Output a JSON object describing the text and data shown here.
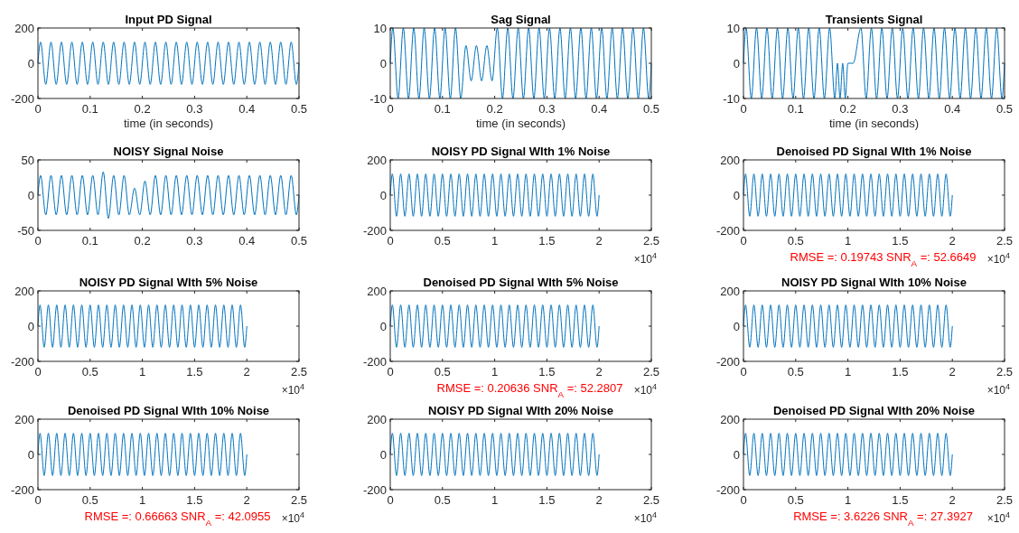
{
  "chart_data": [
    {
      "type": "line",
      "title": "Input PD Signal",
      "xlabel": "time (in seconds)",
      "xlim": [
        0,
        0.5
      ],
      "ylim": [
        -200,
        200
      ],
      "xticks": [
        0,
        0.1,
        0.2,
        0.3,
        0.4,
        0.5
      ],
      "yticks": [
        -200,
        0,
        200
      ],
      "x": [
        0,
        0.005,
        0.015,
        0.025,
        0.035,
        0.045,
        0.055,
        0.065,
        0.075,
        0.085,
        0.095,
        0.105,
        0.115,
        0.125,
        0.135,
        0.145,
        0.155,
        0.165,
        0.175,
        0.185,
        0.195,
        0.205,
        0.215,
        0.225,
        0.235,
        0.245,
        0.255,
        0.265,
        0.275,
        0.285,
        0.295,
        0.305,
        0.315,
        0.325,
        0.335,
        0.345,
        0.355,
        0.365,
        0.375,
        0.385,
        0.395,
        0.405,
        0.415,
        0.425,
        0.435,
        0.445,
        0.455,
        0.465,
        0.475,
        0.485,
        0.495,
        0.5
      ],
      "series": [
        {
          "color": "#0072bd",
          "values": [
            0,
            120,
            -120,
            120,
            -120,
            120,
            -120,
            120,
            -120,
            120,
            -120,
            120,
            -120,
            120,
            -120,
            120,
            -120,
            120,
            -120,
            120,
            -120,
            120,
            -120,
            120,
            -120,
            120,
            -120,
            120,
            -120,
            120,
            -120,
            120,
            -120,
            120,
            -120,
            120,
            -120,
            120,
            -120,
            120,
            -120,
            120,
            -120,
            120,
            -120,
            120,
            -120,
            120,
            -120,
            120,
            -120,
            0
          ]
        }
      ]
    },
    {
      "type": "line",
      "title": "Sag Signal",
      "xlabel": "time (in seconds)",
      "xlim": [
        0,
        0.5
      ],
      "ylim": [
        -10,
        10
      ],
      "xticks": [
        0,
        0.1,
        0.2,
        0.3,
        0.4,
        0.5
      ],
      "yticks": [
        -10,
        0,
        10
      ],
      "x": [
        0,
        0.005,
        0.015,
        0.025,
        0.035,
        0.045,
        0.055,
        0.065,
        0.075,
        0.085,
        0.095,
        0.105,
        0.115,
        0.125,
        0.135,
        0.145,
        0.155,
        0.165,
        0.175,
        0.185,
        0.195,
        0.205,
        0.215,
        0.225,
        0.235,
        0.245,
        0.255,
        0.265,
        0.275,
        0.285,
        0.295,
        0.305,
        0.315,
        0.325,
        0.335,
        0.345,
        0.355,
        0.365,
        0.375,
        0.385,
        0.395,
        0.405,
        0.415,
        0.425,
        0.435,
        0.445,
        0.455,
        0.465,
        0.475,
        0.485,
        0.495,
        0.5
      ],
      "series": [
        {
          "color": "#0072bd",
          "values": [
            0,
            10,
            -10,
            10,
            -10,
            10,
            -10,
            10,
            -10,
            10,
            -10,
            10,
            -10,
            10,
            -10,
            5,
            -5,
            5,
            -5,
            5,
            -5,
            10,
            -10,
            10,
            -10,
            10,
            -10,
            10,
            -10,
            10,
            -10,
            10,
            -10,
            10,
            -10,
            10,
            -10,
            10,
            -10,
            10,
            -10,
            10,
            -10,
            10,
            -10,
            10,
            -10,
            10,
            -10,
            10,
            -10,
            0
          ]
        }
      ]
    },
    {
      "type": "line",
      "title": "Transients Signal",
      "xlabel": "time (in seconds)",
      "xlim": [
        0,
        0.5
      ],
      "ylim": [
        -10,
        10
      ],
      "xticks": [
        0,
        0.1,
        0.2,
        0.3,
        0.4,
        0.5
      ],
      "yticks": [
        -10,
        0,
        10
      ],
      "x": [
        0,
        0.005,
        0.015,
        0.025,
        0.035,
        0.045,
        0.055,
        0.065,
        0.075,
        0.085,
        0.095,
        0.105,
        0.115,
        0.125,
        0.135,
        0.145,
        0.155,
        0.165,
        0.175,
        0.18,
        0.185,
        0.19,
        0.195,
        0.2,
        0.21,
        0.225,
        0.235,
        0.245,
        0.255,
        0.265,
        0.275,
        0.285,
        0.295,
        0.305,
        0.315,
        0.325,
        0.335,
        0.345,
        0.355,
        0.365,
        0.375,
        0.385,
        0.395,
        0.405,
        0.415,
        0.425,
        0.435,
        0.445,
        0.455,
        0.465,
        0.475,
        0.485,
        0.495,
        0.5
      ],
      "series": [
        {
          "color": "#0072bd",
          "values": [
            0,
            10,
            -10,
            10,
            -10,
            10,
            -10,
            10,
            -10,
            10,
            -10,
            10,
            -10,
            10,
            -10,
            10,
            -10,
            10,
            -10,
            0,
            -10,
            0,
            -10,
            0,
            0,
            10,
            -10,
            10,
            -10,
            10,
            -10,
            10,
            -10,
            10,
            -10,
            10,
            -10,
            10,
            -10,
            10,
            -10,
            10,
            -10,
            10,
            -10,
            10,
            -10,
            10,
            -10,
            10,
            -10,
            10,
            -10,
            0
          ]
        }
      ]
    },
    {
      "type": "line",
      "title": "NOISY  Signal  Noise",
      "xlim": [
        0,
        0.5
      ],
      "ylim": [
        -50,
        50
      ],
      "xticks": [
        0,
        0.1,
        0.2,
        0.3,
        0.4,
        0.5
      ],
      "yticks": [
        -50,
        0,
        50
      ],
      "x": [
        0,
        0.005,
        0.015,
        0.025,
        0.035,
        0.045,
        0.055,
        0.065,
        0.075,
        0.085,
        0.095,
        0.105,
        0.115,
        0.125,
        0.135,
        0.145,
        0.155,
        0.165,
        0.175,
        0.185,
        0.195,
        0.205,
        0.215,
        0.225,
        0.235,
        0.245,
        0.255,
        0.265,
        0.275,
        0.285,
        0.295,
        0.305,
        0.315,
        0.325,
        0.335,
        0.345,
        0.355,
        0.365,
        0.375,
        0.385,
        0.395,
        0.405,
        0.415,
        0.425,
        0.435,
        0.445,
        0.455,
        0.465,
        0.475,
        0.485,
        0.495,
        0.5
      ],
      "series": [
        {
          "color": "#0072bd",
          "values": [
            0,
            28,
            -28,
            28,
            -28,
            28,
            -28,
            28,
            -28,
            28,
            -28,
            28,
            -28,
            33,
            -33,
            28,
            -28,
            28,
            -28,
            10,
            -28,
            20,
            -28,
            28,
            -28,
            28,
            -28,
            28,
            -28,
            28,
            -28,
            28,
            -28,
            28,
            -28,
            28,
            -28,
            28,
            -28,
            28,
            -28,
            28,
            -28,
            28,
            -28,
            28,
            -28,
            28,
            -28,
            28,
            -28,
            0
          ]
        }
      ]
    },
    {
      "type": "line",
      "title": "NOISY PD Signal WIth 1% Noise",
      "xlim": [
        0,
        2.5
      ],
      "ylim": [
        -200,
        200
      ],
      "xticks": [
        0,
        0.5,
        1,
        1.5,
        2,
        2.5
      ],
      "yticks": [
        -200,
        0,
        200
      ],
      "annotations": [
        "×10$^{4}$"
      ],
      "x": [
        0,
        0.02,
        0.06,
        0.1,
        0.14,
        0.18,
        0.22,
        0.26,
        0.3,
        0.34,
        0.38,
        0.42,
        0.46,
        0.5,
        0.54,
        0.58,
        0.62,
        0.66,
        0.7,
        0.74,
        0.78,
        0.82,
        0.86,
        0.9,
        0.94,
        0.98,
        1.02,
        1.06,
        1.1,
        1.14,
        1.18,
        1.22,
        1.26,
        1.3,
        1.34,
        1.38,
        1.42,
        1.46,
        1.5,
        1.54,
        1.58,
        1.62,
        1.66,
        1.7,
        1.74,
        1.78,
        1.82,
        1.86,
        1.9,
        1.94,
        1.98,
        2
      ],
      "series": [
        {
          "color": "#0072bd",
          "values": [
            0,
            120,
            -120,
            120,
            -120,
            120,
            -120,
            120,
            -120,
            120,
            -120,
            120,
            -120,
            120,
            -120,
            120,
            -120,
            120,
            -120,
            120,
            -120,
            120,
            -120,
            120,
            -120,
            120,
            -120,
            120,
            -120,
            120,
            -120,
            120,
            -120,
            120,
            -120,
            120,
            -120,
            120,
            -120,
            120,
            -120,
            120,
            -120,
            120,
            -120,
            120,
            -120,
            120,
            -120,
            120,
            -120,
            0
          ]
        }
      ]
    },
    {
      "type": "line",
      "title": "Denoised PD Signal WIth 1% Noise",
      "xlim": [
        0,
        2.5
      ],
      "ylim": [
        -200,
        200
      ],
      "xticks": [
        0,
        0.5,
        1,
        1.5,
        2,
        2.5
      ],
      "yticks": [
        -200,
        0,
        200
      ],
      "annotations": [
        "×10$^{4}$",
        "RMSE =: 0.19743 SNR$_{A}$ =: 52.6649"
      ],
      "x": [
        0,
        0.02,
        0.06,
        0.1,
        0.14,
        0.18,
        0.22,
        0.26,
        0.3,
        0.34,
        0.38,
        0.42,
        0.46,
        0.5,
        0.54,
        0.58,
        0.62,
        0.66,
        0.7,
        0.74,
        0.78,
        0.82,
        0.86,
        0.9,
        0.94,
        0.98,
        1.02,
        1.06,
        1.1,
        1.14,
        1.18,
        1.22,
        1.26,
        1.3,
        1.34,
        1.38,
        1.42,
        1.46,
        1.5,
        1.54,
        1.58,
        1.62,
        1.66,
        1.7,
        1.74,
        1.78,
        1.82,
        1.86,
        1.9,
        1.94,
        1.98,
        2
      ],
      "series": [
        {
          "color": "#0072bd",
          "values": [
            0,
            120,
            -120,
            120,
            -120,
            120,
            -120,
            120,
            -120,
            120,
            -120,
            120,
            -120,
            120,
            -120,
            120,
            -120,
            120,
            -120,
            120,
            -120,
            120,
            -120,
            120,
            -120,
            120,
            -120,
            120,
            -120,
            120,
            -120,
            120,
            -120,
            120,
            -120,
            120,
            -120,
            120,
            -120,
            120,
            -120,
            120,
            -120,
            120,
            -120,
            120,
            -120,
            120,
            -120,
            120,
            -120,
            0
          ]
        }
      ]
    },
    {
      "type": "line",
      "title": "NOISY PD Signal WIth 5% Noise",
      "xlim": [
        0,
        2.5
      ],
      "ylim": [
        -200,
        200
      ],
      "xticks": [
        0,
        0.5,
        1,
        1.5,
        2,
        2.5
      ],
      "yticks": [
        -200,
        0,
        200
      ],
      "annotations": [
        "×10$^{4}$"
      ],
      "x": [
        0,
        0.02,
        0.06,
        0.1,
        0.14,
        0.18,
        0.22,
        0.26,
        0.3,
        0.34,
        0.38,
        0.42,
        0.46,
        0.5,
        0.54,
        0.58,
        0.62,
        0.66,
        0.7,
        0.74,
        0.78,
        0.82,
        0.86,
        0.9,
        0.94,
        0.98,
        1.02,
        1.06,
        1.1,
        1.14,
        1.18,
        1.22,
        1.26,
        1.3,
        1.34,
        1.38,
        1.42,
        1.46,
        1.5,
        1.54,
        1.58,
        1.62,
        1.66,
        1.7,
        1.74,
        1.78,
        1.82,
        1.86,
        1.9,
        1.94,
        1.98,
        2
      ],
      "series": [
        {
          "color": "#0072bd",
          "values": [
            0,
            120,
            -120,
            120,
            -120,
            120,
            -120,
            120,
            -120,
            120,
            -120,
            120,
            -120,
            120,
            -120,
            120,
            -120,
            120,
            -120,
            120,
            -120,
            120,
            -120,
            120,
            -120,
            120,
            -120,
            120,
            -120,
            120,
            -120,
            120,
            -120,
            120,
            -120,
            120,
            -120,
            120,
            -120,
            120,
            -120,
            120,
            -120,
            120,
            -120,
            120,
            -120,
            120,
            -120,
            120,
            -120,
            0
          ]
        }
      ]
    },
    {
      "type": "line",
      "title": "Denoised PD Signal WIth 5% Noise",
      "xlim": [
        0,
        2.5
      ],
      "ylim": [
        -200,
        200
      ],
      "xticks": [
        0,
        0.5,
        1,
        1.5,
        2,
        2.5
      ],
      "yticks": [
        -200,
        0,
        200
      ],
      "annotations": [
        "×10$^{4}$",
        "RMSE =: 0.20636 SNR$_{A}$ =: 52.2807"
      ],
      "x": [
        0,
        0.02,
        0.06,
        0.1,
        0.14,
        0.18,
        0.22,
        0.26,
        0.3,
        0.34,
        0.38,
        0.42,
        0.46,
        0.5,
        0.54,
        0.58,
        0.62,
        0.66,
        0.7,
        0.74,
        0.78,
        0.82,
        0.86,
        0.9,
        0.94,
        0.98,
        1.02,
        1.06,
        1.1,
        1.14,
        1.18,
        1.22,
        1.26,
        1.3,
        1.34,
        1.38,
        1.42,
        1.46,
        1.5,
        1.54,
        1.58,
        1.62,
        1.66,
        1.7,
        1.74,
        1.78,
        1.82,
        1.86,
        1.9,
        1.94,
        1.98,
        2
      ],
      "series": [
        {
          "color": "#0072bd",
          "values": [
            0,
            120,
            -120,
            120,
            -120,
            120,
            -120,
            120,
            -120,
            120,
            -120,
            120,
            -120,
            120,
            -120,
            120,
            -120,
            120,
            -120,
            120,
            -120,
            120,
            -120,
            120,
            -120,
            120,
            -120,
            120,
            -120,
            120,
            -120,
            120,
            -120,
            120,
            -120,
            120,
            -120,
            120,
            -120,
            120,
            -120,
            120,
            -120,
            120,
            -120,
            120,
            -120,
            120,
            -120,
            120,
            -120,
            0
          ]
        }
      ]
    },
    {
      "type": "line",
      "title": "NOISY PD Signal WIth 10% Noise",
      "xlim": [
        0,
        2.5
      ],
      "ylim": [
        -200,
        200
      ],
      "xticks": [
        0,
        0.5,
        1,
        1.5,
        2,
        2.5
      ],
      "yticks": [
        -200,
        0,
        200
      ],
      "annotations": [
        "×10$^{4}$"
      ],
      "x": [
        0,
        0.02,
        0.06,
        0.1,
        0.14,
        0.18,
        0.22,
        0.26,
        0.3,
        0.34,
        0.38,
        0.42,
        0.46,
        0.5,
        0.54,
        0.58,
        0.62,
        0.66,
        0.7,
        0.74,
        0.78,
        0.82,
        0.86,
        0.9,
        0.94,
        0.98,
        1.02,
        1.06,
        1.1,
        1.14,
        1.18,
        1.22,
        1.26,
        1.3,
        1.34,
        1.38,
        1.42,
        1.46,
        1.5,
        1.54,
        1.58,
        1.62,
        1.66,
        1.7,
        1.74,
        1.78,
        1.82,
        1.86,
        1.9,
        1.94,
        1.98,
        2
      ],
      "series": [
        {
          "color": "#0072bd",
          "values": [
            0,
            120,
            -120,
            120,
            -120,
            120,
            -120,
            120,
            -120,
            120,
            -120,
            120,
            -120,
            120,
            -120,
            120,
            -120,
            120,
            -120,
            120,
            -120,
            120,
            -120,
            120,
            -120,
            120,
            -120,
            120,
            -120,
            120,
            -120,
            120,
            -120,
            120,
            -120,
            120,
            -120,
            120,
            -120,
            120,
            -120,
            120,
            -120,
            120,
            -120,
            120,
            -120,
            120,
            -120,
            120,
            -120,
            0
          ]
        }
      ]
    },
    {
      "type": "line",
      "title": "Denoised PD Signal WIth 10% Noise",
      "xlim": [
        0,
        2.5
      ],
      "ylim": [
        -200,
        200
      ],
      "xticks": [
        0,
        0.5,
        1,
        1.5,
        2,
        2.5
      ],
      "yticks": [
        -200,
        0,
        200
      ],
      "annotations": [
        "×10$^{4}$",
        "RMSE =: 0.66663 SNR$_{A}$ =: 42.0955"
      ],
      "x": [
        0,
        0.02,
        0.06,
        0.1,
        0.14,
        0.18,
        0.22,
        0.26,
        0.3,
        0.34,
        0.38,
        0.42,
        0.46,
        0.5,
        0.54,
        0.58,
        0.62,
        0.66,
        0.7,
        0.74,
        0.78,
        0.82,
        0.86,
        0.9,
        0.94,
        0.98,
        1.02,
        1.06,
        1.1,
        1.14,
        1.18,
        1.22,
        1.26,
        1.3,
        1.34,
        1.38,
        1.42,
        1.46,
        1.5,
        1.54,
        1.58,
        1.62,
        1.66,
        1.7,
        1.74,
        1.78,
        1.82,
        1.86,
        1.9,
        1.94,
        1.98,
        2
      ],
      "series": [
        {
          "color": "#0072bd",
          "values": [
            0,
            120,
            -120,
            120,
            -120,
            120,
            -120,
            120,
            -120,
            120,
            -120,
            120,
            -120,
            120,
            -120,
            120,
            -120,
            120,
            -120,
            120,
            -120,
            120,
            -120,
            120,
            -120,
            120,
            -120,
            120,
            -120,
            120,
            -120,
            120,
            -120,
            120,
            -120,
            120,
            -120,
            120,
            -120,
            120,
            -120,
            120,
            -120,
            120,
            -120,
            120,
            -120,
            120,
            -120,
            120,
            -120,
            0
          ]
        }
      ]
    },
    {
      "type": "line",
      "title": "NOISY PD Signal WIth 20% Noise",
      "xlim": [
        0,
        2.5
      ],
      "ylim": [
        -200,
        200
      ],
      "xticks": [
        0,
        0.5,
        1,
        1.5,
        2,
        2.5
      ],
      "yticks": [
        -200,
        0,
        200
      ],
      "annotations": [
        "×10$^{4}$"
      ],
      "x": [
        0,
        0.02,
        0.06,
        0.1,
        0.14,
        0.18,
        0.22,
        0.26,
        0.3,
        0.34,
        0.38,
        0.42,
        0.46,
        0.5,
        0.54,
        0.58,
        0.62,
        0.66,
        0.7,
        0.74,
        0.78,
        0.82,
        0.86,
        0.9,
        0.94,
        0.98,
        1.02,
        1.06,
        1.1,
        1.14,
        1.18,
        1.22,
        1.26,
        1.3,
        1.34,
        1.38,
        1.42,
        1.46,
        1.5,
        1.54,
        1.58,
        1.62,
        1.66,
        1.7,
        1.74,
        1.78,
        1.82,
        1.86,
        1.9,
        1.94,
        1.98,
        2
      ],
      "series": [
        {
          "color": "#0072bd",
          "values": [
            0,
            120,
            -120,
            120,
            -120,
            120,
            -120,
            120,
            -120,
            120,
            -120,
            120,
            -120,
            120,
            -120,
            120,
            -120,
            120,
            -120,
            120,
            -120,
            120,
            -120,
            120,
            -120,
            120,
            -120,
            120,
            -120,
            120,
            -120,
            120,
            -120,
            120,
            -120,
            120,
            -120,
            120,
            -120,
            120,
            -120,
            120,
            -120,
            120,
            -120,
            120,
            -120,
            120,
            -120,
            120,
            -120,
            0
          ]
        }
      ]
    },
    {
      "type": "line",
      "title": "Denoised PD Signal WIth 20% Noise",
      "xlim": [
        0,
        2.5
      ],
      "ylim": [
        -200,
        200
      ],
      "xticks": [
        0,
        0.5,
        1,
        1.5,
        2,
        2.5
      ],
      "yticks": [
        -200,
        0,
        200
      ],
      "annotations": [
        "×10$^{4}$",
        "RMSE =: 3.6226 SNR$_{A}$ =: 27.3927"
      ],
      "x": [
        0,
        0.02,
        0.06,
        0.1,
        0.14,
        0.18,
        0.22,
        0.26,
        0.3,
        0.34,
        0.38,
        0.42,
        0.46,
        0.5,
        0.54,
        0.58,
        0.62,
        0.66,
        0.7,
        0.74,
        0.78,
        0.82,
        0.86,
        0.9,
        0.94,
        0.98,
        1.02,
        1.06,
        1.1,
        1.14,
        1.18,
        1.22,
        1.26,
        1.3,
        1.34,
        1.38,
        1.42,
        1.46,
        1.5,
        1.54,
        1.58,
        1.62,
        1.66,
        1.7,
        1.74,
        1.78,
        1.82,
        1.86,
        1.9,
        1.94,
        1.98,
        2
      ],
      "series": [
        {
          "color": "#0072bd",
          "values": [
            0,
            120,
            -120,
            120,
            -120,
            120,
            -120,
            120,
            -120,
            120,
            -120,
            120,
            -120,
            120,
            -120,
            120,
            -120,
            120,
            -120,
            120,
            -120,
            120,
            -120,
            120,
            -120,
            120,
            -120,
            120,
            -120,
            120,
            -120,
            120,
            -120,
            120,
            -120,
            120,
            -120,
            120,
            -120,
            120,
            -120,
            120,
            -120,
            120,
            -120,
            120,
            -120,
            120,
            -120,
            120,
            -120,
            0
          ]
        }
      ]
    }
  ]
}
